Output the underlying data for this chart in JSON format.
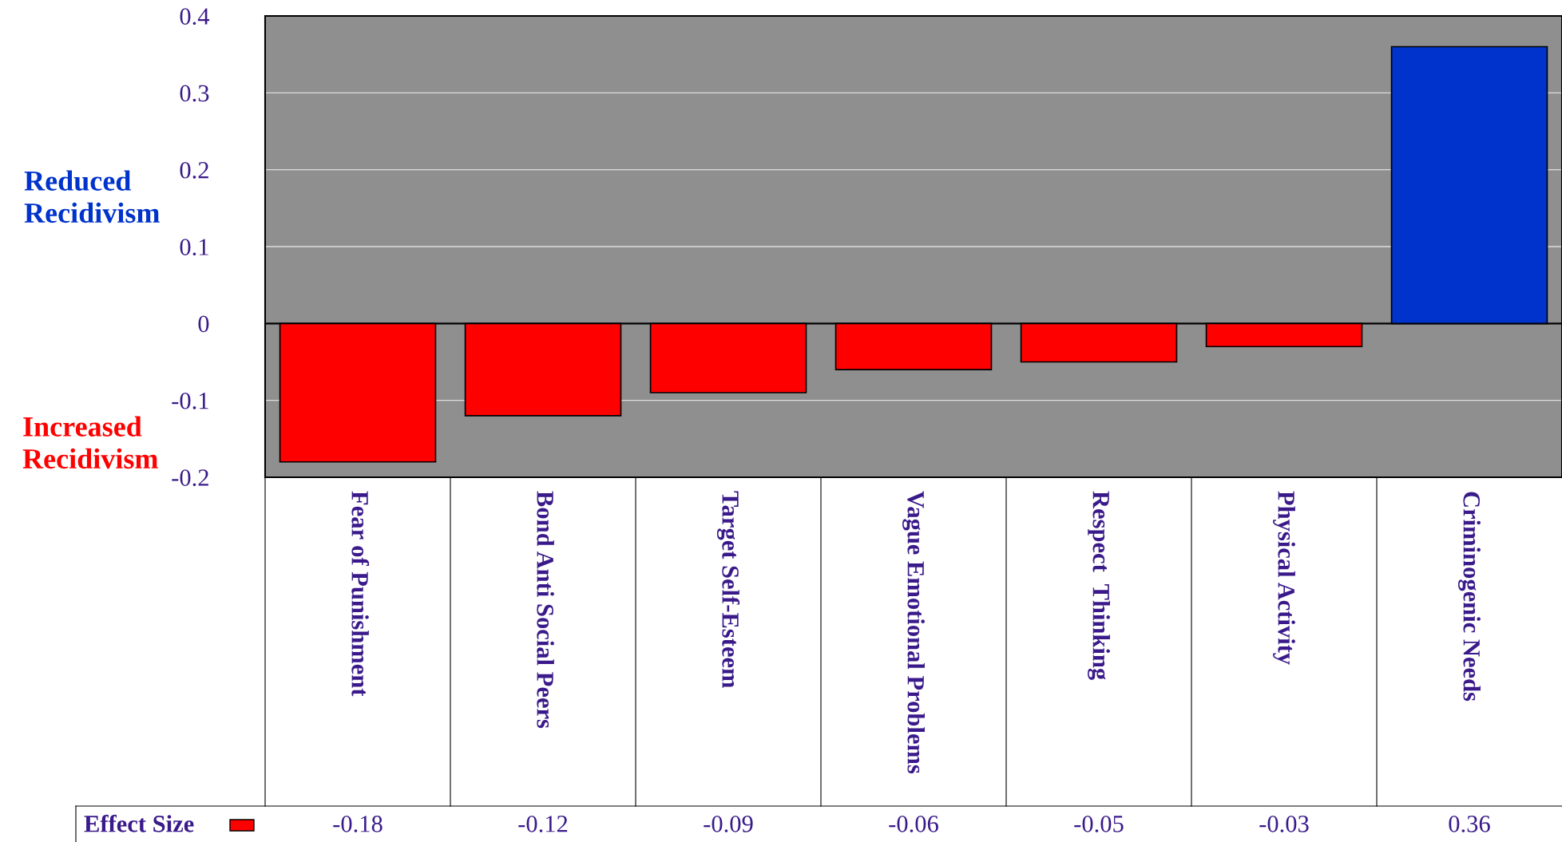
{
  "chart_data": {
    "type": "bar",
    "categories": [
      "Fear of Punishment",
      "Bond Anti Social Peers",
      "Target Self-Esteem",
      "Vague Emotional Problems",
      "Respect  Thinking",
      "Physical Activity",
      "Criminogenic Needs"
    ],
    "series": [
      {
        "name": "Effect Size",
        "values": [
          -0.18,
          -0.12,
          -0.09,
          -0.06,
          -0.05,
          -0.03,
          0.36
        ],
        "colors": [
          "#ff0000",
          "#ff0000",
          "#ff0000",
          "#ff0000",
          "#ff0000",
          "#ff0000",
          "#0033cc"
        ]
      }
    ],
    "ylim": [
      -0.2,
      0.4
    ],
    "yticks": [
      -0.2,
      -0.1,
      0,
      0.1,
      0.2,
      0.3,
      0.4
    ],
    "grid": "y",
    "data_labels": true,
    "legend": "bottom",
    "annotations": [
      "Reduced Recidivism",
      "Increased Recidivism"
    ]
  }
}
